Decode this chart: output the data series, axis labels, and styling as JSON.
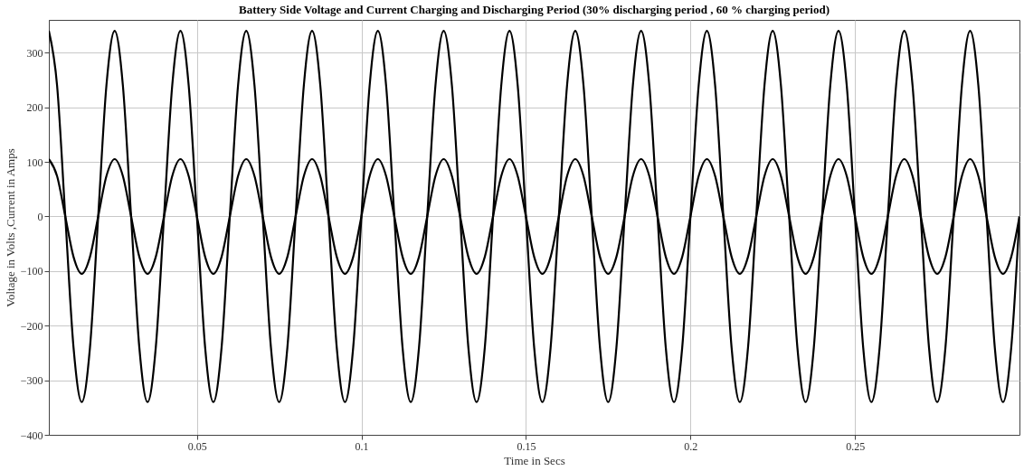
{
  "chart_data": {
    "type": "line",
    "title": "Battery Side Voltage and Current Charging and Discharging Period (30% discharging period , 60 % charging period)",
    "xlabel": "Time in Secs",
    "ylabel": "Voltage in Volts ,Current in Amps",
    "x": [
      0.005,
      0.0075,
      0.01,
      0.0125,
      0.015,
      0.0175,
      0.02,
      0.0225,
      0.025,
      0.0275,
      0.03,
      0.0325,
      0.035,
      0.0375,
      0.04,
      0.0425,
      0.045,
      0.0475,
      0.05,
      0.0525,
      0.055,
      0.0575,
      0.06,
      0.0625,
      0.065,
      0.0675,
      0.07,
      0.0725,
      0.075,
      0.0775,
      0.08,
      0.0825,
      0.085,
      0.0875,
      0.09,
      0.0925,
      0.095,
      0.0975,
      0.1,
      0.1025,
      0.105,
      0.1075,
      0.11,
      0.1125,
      0.115,
      0.1175,
      0.12,
      0.1225,
      0.125,
      0.1275,
      0.13,
      0.1325,
      0.135,
      0.1375,
      0.14,
      0.1425,
      0.145,
      0.1475,
      0.15,
      0.1525,
      0.155,
      0.1575,
      0.16,
      0.1625,
      0.165,
      0.1675,
      0.17,
      0.1725,
      0.175,
      0.1775,
      0.18,
      0.1825,
      0.185,
      0.1875,
      0.19,
      0.1925,
      0.195,
      0.1975,
      0.2,
      0.2025,
      0.205,
      0.2075,
      0.21,
      0.2125,
      0.215,
      0.2175,
      0.22,
      0.2225,
      0.225,
      0.2275,
      0.23,
      0.2325,
      0.235,
      0.2375,
      0.24,
      0.2425,
      0.245,
      0.2475,
      0.25,
      0.2525,
      0.255,
      0.2575,
      0.26,
      0.2625,
      0.265,
      0.2675,
      0.27,
      0.2725,
      0.275,
      0.2775,
      0.28,
      0.2825,
      0.285,
      0.2875,
      0.29,
      0.2925,
      0.295,
      0.2975,
      0.3
    ],
    "series": [
      {
        "color": "#000000",
        "values": [
          340,
          240,
          0,
          -240,
          -340,
          -240,
          0,
          240,
          340,
          240,
          0,
          -240,
          -340,
          -240,
          0,
          240,
          340,
          240,
          0,
          -240,
          -340,
          -240,
          0,
          240,
          340,
          240,
          0,
          -240,
          -340,
          -240,
          0,
          240,
          340,
          240,
          0,
          -240,
          -340,
          -240,
          0,
          240,
          340,
          240,
          0,
          -240,
          -340,
          -240,
          0,
          240,
          340,
          240,
          0,
          -240,
          -340,
          -240,
          0,
          240,
          340,
          240,
          0,
          -240,
          -340,
          -240,
          0,
          240,
          340,
          240,
          0,
          -240,
          -340,
          -240,
          0,
          240,
          340,
          240,
          0,
          -240,
          -340,
          -240,
          0,
          240,
          340,
          240,
          0,
          -240,
          -340,
          -240,
          0,
          240,
          340,
          240,
          0,
          -240,
          -340,
          -240,
          0,
          240,
          340,
          240,
          0,
          -240,
          -340,
          -240,
          0,
          240,
          340,
          240,
          0,
          -240,
          -340,
          -240,
          0,
          240,
          340,
          240,
          0,
          -240,
          -340,
          -240,
          0
        ]
      },
      {
        "color": "#000000",
        "values": [
          105,
          74,
          0,
          -74,
          -105,
          -74,
          0,
          74,
          105,
          74,
          0,
          -74,
          -105,
          -74,
          0,
          74,
          105,
          74,
          0,
          -74,
          -105,
          -74,
          0,
          74,
          105,
          74,
          0,
          -74,
          -105,
          -74,
          0,
          74,
          105,
          74,
          0,
          -74,
          -105,
          -74,
          0,
          74,
          105,
          74,
          0,
          -74,
          -105,
          -74,
          0,
          74,
          105,
          74,
          0,
          -74,
          -105,
          -74,
          0,
          74,
          105,
          74,
          0,
          -74,
          -105,
          -74,
          0,
          74,
          105,
          74,
          0,
          -74,
          -105,
          -74,
          0,
          74,
          105,
          74,
          0,
          -74,
          -105,
          -74,
          0,
          74,
          105,
          74,
          0,
          -74,
          -105,
          -74,
          0,
          74,
          105,
          74,
          0,
          -74,
          -105,
          -74,
          0,
          74,
          105,
          74,
          0,
          -74,
          -105,
          -74,
          0,
          74,
          105,
          74,
          0,
          -74,
          -105,
          -74,
          0,
          74,
          105,
          74,
          0,
          -74,
          -105,
          -74,
          0
        ]
      }
    ],
    "xlim": [
      0.005,
      0.3
    ],
    "ylim": [
      -400,
      360
    ],
    "xticks": [
      0.05,
      0.1,
      0.15,
      0.2,
      0.25
    ],
    "yticks": [
      -400,
      -300,
      -200,
      -100,
      0,
      100,
      200,
      300
    ],
    "grid": true,
    "legend": false,
    "marker": "none",
    "line_style": "solid"
  }
}
